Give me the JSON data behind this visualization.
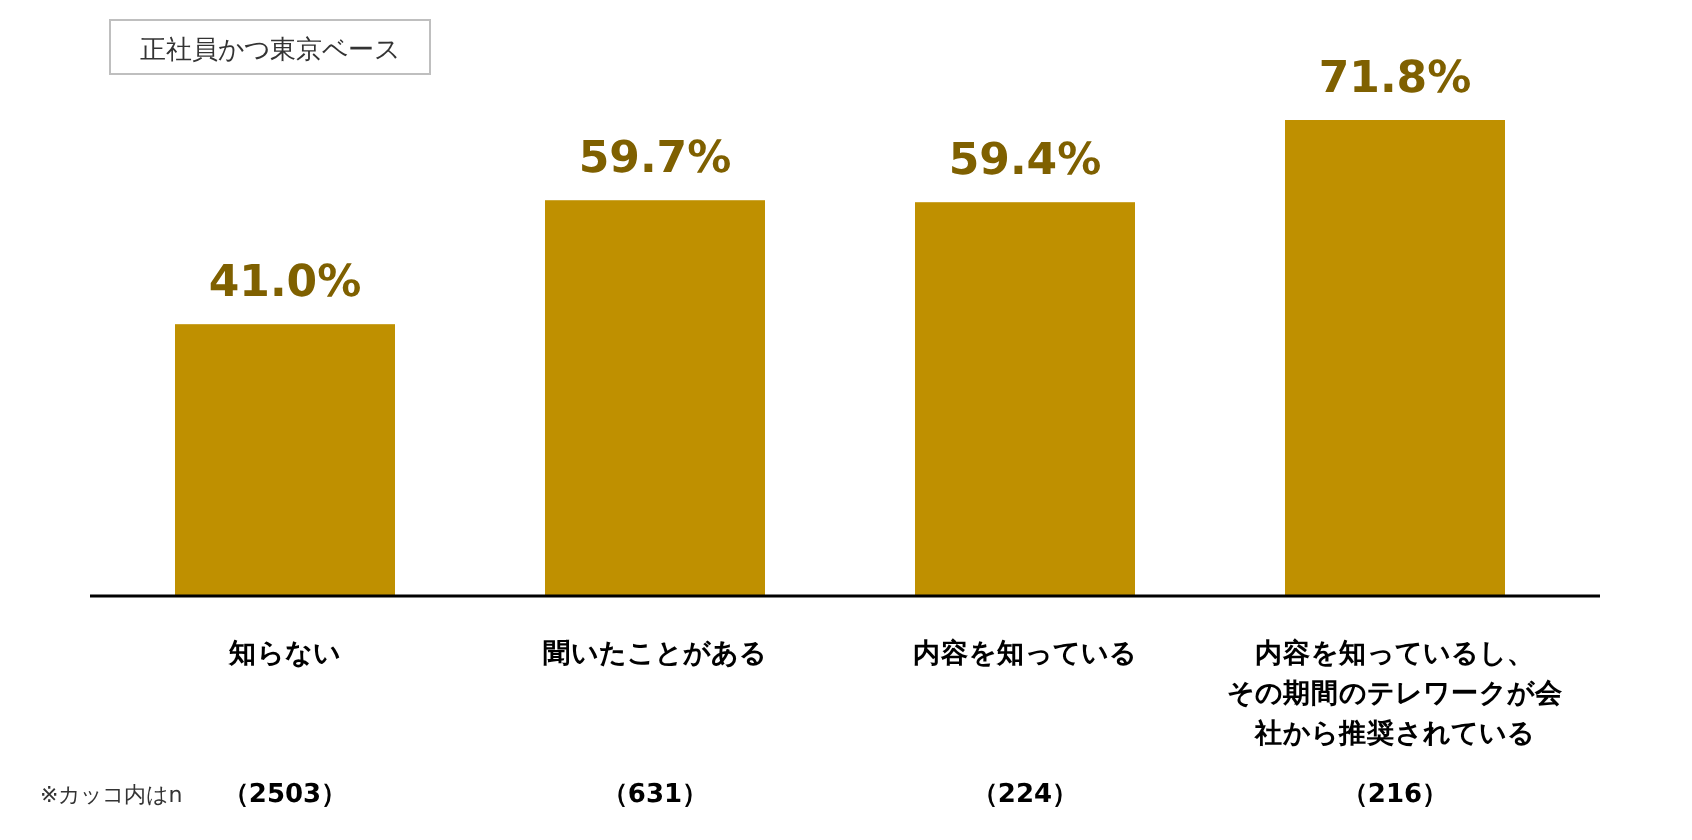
{
  "chart_data": {
    "type": "bar",
    "subtitle": "正社員かつ東京ベース",
    "categories": [
      "知らない",
      "聞いたことがある",
      "内容を知っている",
      "内容を知っているし、その期間のテレワークが会社から推奨されている"
    ],
    "values": [
      41.0,
      59.7,
      59.4,
      71.8
    ],
    "value_labels": [
      "41.0%",
      "59.7%",
      "59.4%",
      "71.8%"
    ],
    "color": "#bf9000",
    "annotations": [
      "※カッコ内はn",
      "（2503）",
      "（631）",
      "（224）",
      "（216）"
    ]
  }
}
